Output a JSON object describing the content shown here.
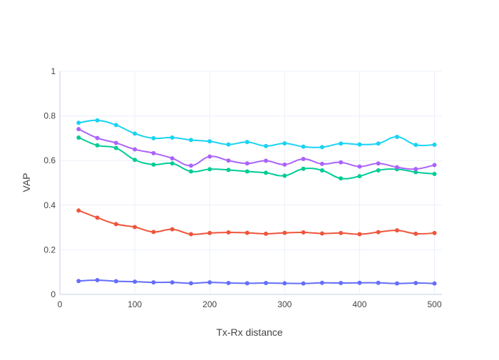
{
  "chart_data": {
    "type": "line",
    "title": "",
    "xlabel": "Tx-Rx distance",
    "ylabel": "VAP",
    "xlim": [
      0,
      510
    ],
    "ylim": [
      0,
      1
    ],
    "xticks": [
      0,
      100,
      200,
      300,
      400,
      500
    ],
    "yticks": [
      0,
      0.2,
      0.4,
      0.6,
      0.8,
      1
    ],
    "xtick_labels": [
      "0",
      "100",
      "200",
      "300",
      "400",
      "500"
    ],
    "ytick_labels": [
      "0",
      "0.2",
      "0.4",
      "0.6",
      "0.8",
      "1"
    ],
    "grid": true,
    "legend": "none",
    "x": [
      25,
      50,
      75,
      100,
      125,
      150,
      175,
      200,
      225,
      250,
      275,
      300,
      325,
      350,
      375,
      400,
      425,
      450,
      475,
      500
    ],
    "series": [
      {
        "color": "#636efa",
        "values": [
          0.06,
          0.064,
          0.059,
          0.057,
          0.054,
          0.054,
          0.05,
          0.054,
          0.051,
          0.05,
          0.051,
          0.05,
          0.049,
          0.052,
          0.051,
          0.052,
          0.052,
          0.049,
          0.051,
          0.049
        ]
      },
      {
        "color": "#ef553b",
        "values": [
          0.376,
          0.344,
          0.315,
          0.302,
          0.28,
          0.292,
          0.27,
          0.275,
          0.278,
          0.276,
          0.272,
          0.276,
          0.278,
          0.273,
          0.275,
          0.27,
          0.279,
          0.287,
          0.272,
          0.275
        ]
      },
      {
        "color": "#00cc96",
        "values": [
          0.703,
          0.668,
          0.656,
          0.603,
          0.582,
          0.587,
          0.551,
          0.561,
          0.558,
          0.551,
          0.545,
          0.532,
          0.563,
          0.556,
          0.52,
          0.53,
          0.556,
          0.561,
          0.548,
          0.54
        ]
      },
      {
        "color": "#ab63fa",
        "values": [
          0.741,
          0.701,
          0.679,
          0.65,
          0.633,
          0.61,
          0.577,
          0.618,
          0.6,
          0.587,
          0.599,
          0.582,
          0.607,
          0.585,
          0.592,
          0.573,
          0.587,
          0.57,
          0.562,
          0.58
        ]
      },
      {
        "color": "#19d3f3",
        "values": [
          0.769,
          0.78,
          0.759,
          0.721,
          0.7,
          0.703,
          0.692,
          0.686,
          0.672,
          0.683,
          0.665,
          0.677,
          0.662,
          0.66,
          0.676,
          0.672,
          0.676,
          0.706,
          0.67,
          0.671
        ]
      }
    ]
  }
}
